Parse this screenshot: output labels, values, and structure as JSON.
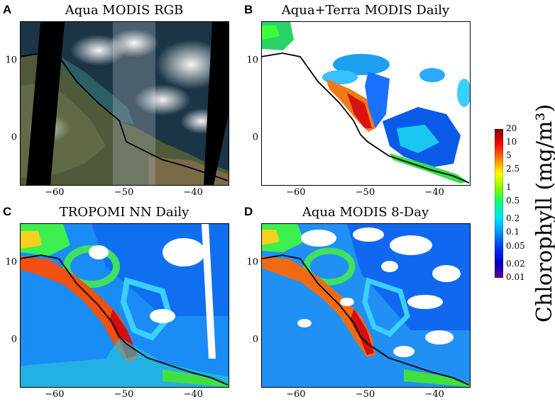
{
  "chart_data": [
    {
      "panel": "A",
      "type": "image",
      "title": "Aqua MODIS RGB",
      "x_ticks": [
        "−60",
        "−50",
        "−40"
      ],
      "y_ticks": [
        "10",
        "0"
      ],
      "x_range": [
        -65,
        -35
      ],
      "y_range": [
        -6,
        15
      ]
    },
    {
      "panel": "B",
      "type": "heatmap",
      "title": "Aqua+Terra MODIS Daily",
      "x_ticks": [
        "−60",
        "−50",
        "−40"
      ],
      "y_ticks": [
        "10",
        "0"
      ],
      "x_range": [
        -65,
        -35
      ],
      "y_range": [
        -6,
        15
      ]
    },
    {
      "panel": "C",
      "type": "heatmap",
      "title": "TROPOMI NN Daily",
      "x_ticks": [
        "−60",
        "−50",
        "−40"
      ],
      "y_ticks": [
        "10",
        "0"
      ],
      "x_range": [
        -65,
        -35
      ],
      "y_range": [
        -6,
        15
      ]
    },
    {
      "panel": "D",
      "type": "heatmap",
      "title": "Aqua MODIS 8-Day",
      "x_ticks": [
        "−60",
        "−50",
        "−40"
      ],
      "y_ticks": [
        "10",
        "0"
      ],
      "x_range": [
        -65,
        -35
      ],
      "y_range": [
        -6,
        15
      ]
    }
  ],
  "colorbar": {
    "label": "Chlorophyll (mg/m³)",
    "scale": "log",
    "range": [
      0.01,
      20
    ],
    "ticks": [
      "20",
      "10",
      "5",
      "2.5",
      "1",
      "0.5",
      "0.2",
      "0.1",
      "0.05",
      "0.02",
      "0.01"
    ],
    "colors": [
      "#800000",
      "#ff0000",
      "#ff8000",
      "#ffff00",
      "#80ff00",
      "#00ff80",
      "#00e0ff",
      "#0090ff",
      "#0030ff",
      "#0000c0",
      "#600090"
    ]
  }
}
